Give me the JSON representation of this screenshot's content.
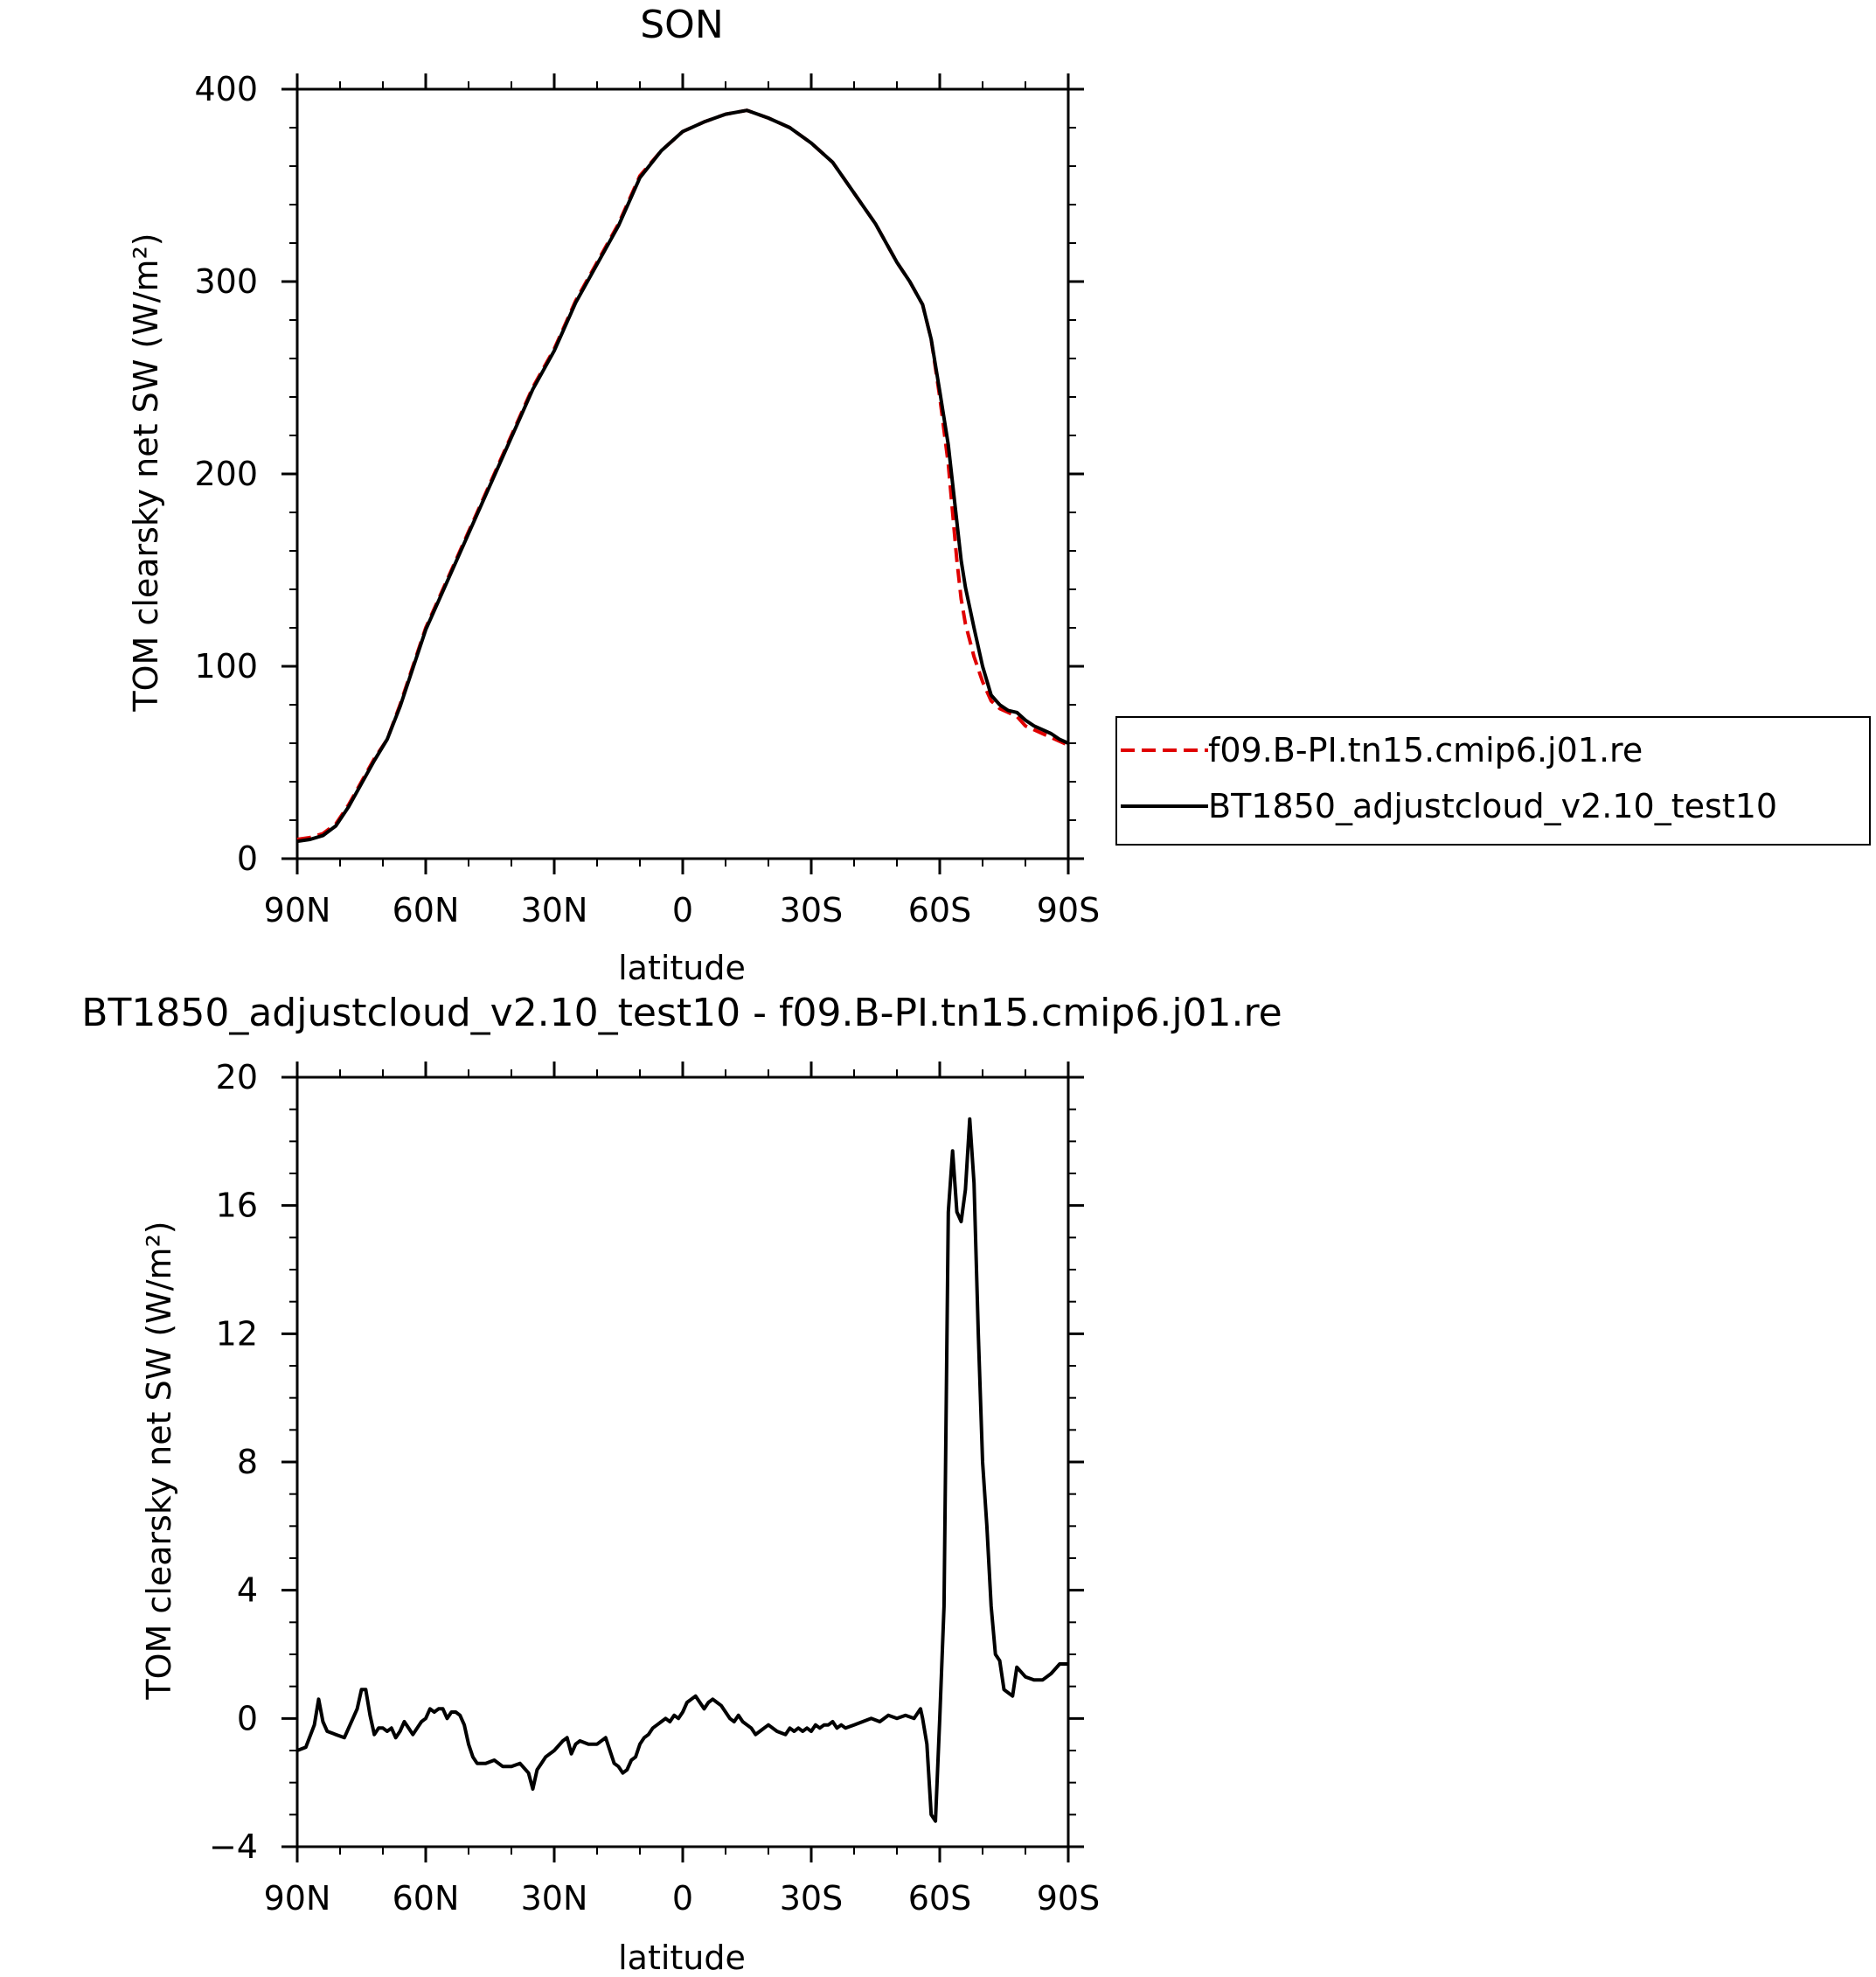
{
  "chart_data": [
    {
      "type": "line",
      "title": "SON",
      "xlabel": "latitude",
      "ylabel": "TOM clearsky net SW (W/m²)",
      "xlim": [
        90,
        -90
      ],
      "ylim": [
        0,
        400
      ],
      "x_ticks": [
        90,
        60,
        30,
        0,
        -30,
        -60,
        -90
      ],
      "x_tick_labels": [
        "90N",
        "60N",
        "30N",
        "0",
        "30S",
        "60S",
        "90S"
      ],
      "y_ticks": [
        0,
        100,
        200,
        300,
        400
      ],
      "y_tick_labels": [
        "0",
        "100",
        "200",
        "300",
        "400"
      ],
      "grid": false,
      "legend_position": "outside-right",
      "series": [
        {
          "name": "f09.B-PI.tn15.cmip6.j01.re",
          "color": "#e00000",
          "dash": "dashed",
          "x": [
            90,
            87,
            84,
            81,
            78,
            75,
            72,
            69,
            66,
            63,
            60,
            55,
            50,
            45,
            40,
            35,
            30,
            25,
            20,
            15,
            10,
            5,
            0,
            -5,
            -10,
            -15,
            -20,
            -25,
            -30,
            -35,
            -40,
            -45,
            -50,
            -53,
            -56,
            -58,
            -60,
            -62,
            -63,
            -64,
            -65,
            -66,
            -68,
            -70,
            -72,
            -74,
            -76,
            -78,
            -80,
            -82,
            -84,
            -86,
            -88,
            -90
          ],
          "values": [
            10,
            11,
            13,
            18,
            28,
            40,
            52,
            62,
            80,
            100,
            120,
            145,
            170,
            195,
            220,
            245,
            265,
            290,
            310,
            330,
            355,
            368,
            378,
            383,
            387,
            389,
            385,
            380,
            372,
            362,
            346,
            330,
            310,
            300,
            288,
            270,
            240,
            205,
            180,
            155,
            135,
            122,
            105,
            92,
            82,
            78,
            76,
            74,
            69,
            67,
            65,
            63,
            61,
            59
          ]
        },
        {
          "name": "BT1850_adjustcloud_v2.10_test10",
          "color": "#000000",
          "dash": "solid",
          "x": [
            90,
            87,
            84,
            81,
            78,
            75,
            72,
            69,
            66,
            63,
            60,
            55,
            50,
            45,
            40,
            35,
            30,
            25,
            20,
            15,
            10,
            5,
            0,
            -5,
            -10,
            -15,
            -20,
            -25,
            -30,
            -35,
            -40,
            -45,
            -50,
            -53,
            -56,
            -58,
            -60,
            -62,
            -63,
            -64,
            -65,
            -66,
            -68,
            -70,
            -72,
            -74,
            -76,
            -78,
            -80,
            -82,
            -84,
            -86,
            -88,
            -90
          ],
          "values": [
            9,
            10,
            12,
            17,
            27,
            39,
            51,
            62,
            79,
            99,
            119,
            144,
            169,
            194,
            219,
            244,
            264,
            289,
            309,
            329,
            354,
            368,
            378,
            383,
            387,
            389,
            385,
            380,
            372,
            362,
            346,
            330,
            310,
            300,
            288,
            270,
            243,
            215,
            195,
            175,
            155,
            141,
            120,
            100,
            85,
            80,
            77,
            76,
            72,
            69,
            67,
            65,
            62,
            60
          ]
        }
      ]
    },
    {
      "type": "line",
      "title": "BT1850_adjustcloud_v2.10_test10 - f09.B-PI.tn15.cmip6.j01.re",
      "xlabel": "latitude",
      "ylabel": "TOM clearsky net SW (W/m²)",
      "xlim": [
        90,
        -90
      ],
      "ylim": [
        -4,
        20
      ],
      "x_ticks": [
        90,
        60,
        30,
        0,
        -30,
        -60,
        -90
      ],
      "x_tick_labels": [
        "90N",
        "60N",
        "30N",
        "0",
        "30S",
        "60S",
        "90S"
      ],
      "y_ticks": [
        -4,
        0,
        4,
        8,
        12,
        16,
        20
      ],
      "y_tick_labels": [
        "−4",
        "0",
        "4",
        "8",
        "12",
        "16",
        "20"
      ],
      "grid": false,
      "series": [
        {
          "color": "#000000",
          "x": [
            90,
            88,
            86,
            85,
            84,
            83,
            81,
            79,
            78,
            77,
            76,
            75,
            74,
            73,
            72,
            71,
            70,
            69,
            68,
            67,
            66,
            65,
            64,
            63,
            62,
            61,
            60,
            59,
            58,
            57,
            56,
            55,
            54,
            53,
            52,
            51,
            50,
            49,
            48,
            46,
            44,
            42,
            40,
            38,
            36,
            35,
            34,
            33,
            32,
            30,
            28,
            27,
            26,
            25,
            24,
            22,
            20,
            18,
            17,
            16,
            15,
            14,
            13,
            12,
            11,
            10,
            9,
            8,
            7,
            6,
            5,
            4,
            3,
            2,
            1,
            0,
            -1,
            -2,
            -3,
            -4,
            -5,
            -6,
            -7,
            -8,
            -9,
            -10,
            -11,
            -12,
            -13,
            -14,
            -15,
            -16,
            -17,
            -18,
            -19,
            -20,
            -22,
            -24,
            -25,
            -26,
            -27,
            -28,
            -29,
            -30,
            -31,
            -32,
            -33,
            -34,
            -35,
            -36,
            -37,
            -38,
            -40,
            -42,
            -44,
            -46,
            -48,
            -50,
            -52,
            -54,
            -55,
            -55.5,
            -56,
            -57,
            -58,
            -59,
            -60,
            -61,
            -62,
            -63,
            -64,
            -65,
            -66,
            -67,
            -68,
            -69,
            -70,
            -71,
            -72,
            -73,
            -74,
            -75,
            -76,
            -77,
            -78,
            -80,
            -82,
            -84,
            -86,
            -88,
            -90
          ],
          "values": [
            -1.0,
            -0.9,
            -0.2,
            0.6,
            -0.1,
            -0.4,
            -0.5,
            -0.6,
            -0.3,
            0.0,
            0.3,
            0.9,
            0.9,
            0.1,
            -0.5,
            -0.3,
            -0.3,
            -0.4,
            -0.3,
            -0.6,
            -0.4,
            -0.1,
            -0.3,
            -0.5,
            -0.3,
            -0.1,
            0.0,
            0.3,
            0.2,
            0.3,
            0.3,
            -0.0,
            0.2,
            0.2,
            0.1,
            -0.2,
            -0.8,
            -1.2,
            -1.4,
            -1.4,
            -1.3,
            -1.5,
            -1.5,
            -1.4,
            -1.7,
            -2.2,
            -1.6,
            -1.4,
            -1.2,
            -1.0,
            -0.7,
            -0.6,
            -1.1,
            -0.8,
            -0.7,
            -0.8,
            -0.8,
            -0.6,
            -1.0,
            -1.4,
            -1.5,
            -1.7,
            -1.6,
            -1.3,
            -1.2,
            -0.8,
            -0.6,
            -0.5,
            -0.3,
            -0.2,
            -0.1,
            0.0,
            -0.1,
            0.1,
            0.0,
            0.2,
            0.5,
            0.6,
            0.7,
            0.5,
            0.3,
            0.5,
            0.6,
            0.5,
            0.4,
            0.2,
            0.0,
            -0.1,
            0.1,
            -0.1,
            -0.2,
            -0.3,
            -0.5,
            -0.4,
            -0.3,
            -0.2,
            -0.4,
            -0.5,
            -0.3,
            -0.4,
            -0.3,
            -0.4,
            -0.3,
            -0.4,
            -0.2,
            -0.3,
            -0.2,
            -0.2,
            -0.1,
            -0.3,
            -0.2,
            -0.3,
            -0.2,
            -0.1,
            0.0,
            -0.1,
            0.1,
            0.0,
            0.1,
            0.0,
            0.2,
            0.3,
            0.0,
            -0.8,
            -3.0,
            -3.2,
            0.0,
            3.5,
            15.8,
            17.7,
            15.8,
            15.5,
            16.5,
            18.7,
            16.7,
            12.0,
            8.0,
            6.0,
            3.5,
            2.0,
            1.8,
            0.9,
            0.8,
            0.7,
            1.6,
            1.3,
            1.2,
            1.2,
            1.4,
            1.7,
            1.7
          ]
        }
      ]
    }
  ]
}
